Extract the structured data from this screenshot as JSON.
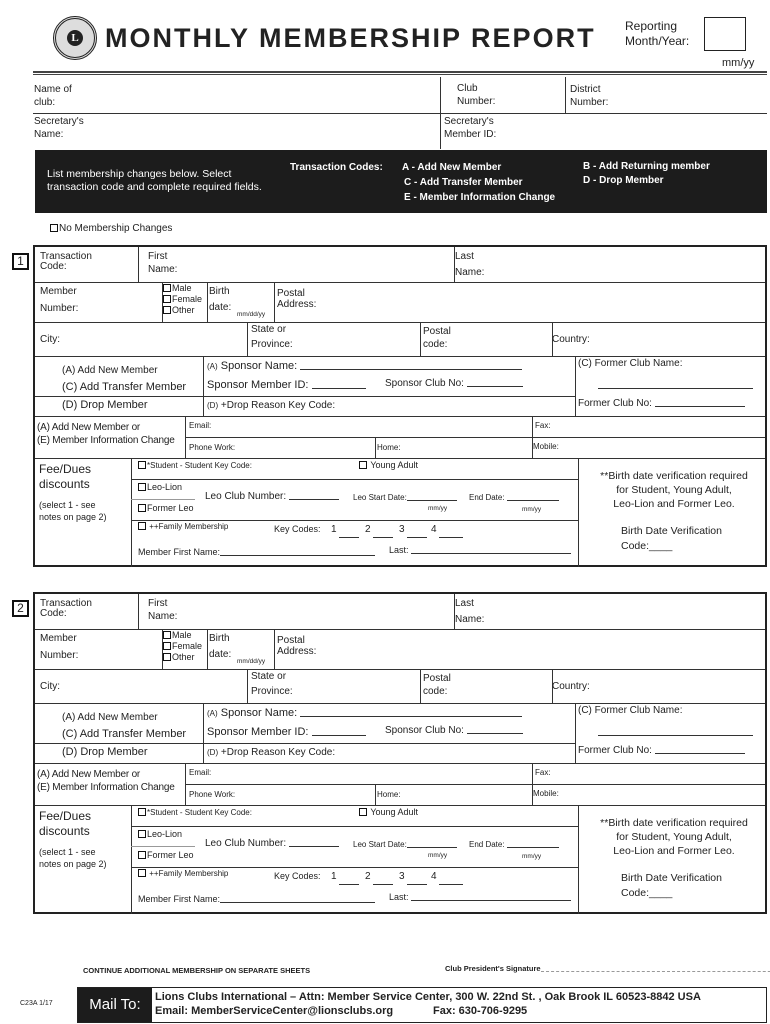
{
  "header": {
    "title": "MONTHLY MEMBERSHIP REPORT",
    "logo_text": "LIONS INTERNATIONAL",
    "reporting_label_1": "Reporting",
    "reporting_label_2": "Month/Year:",
    "reporting_hint": "mm/yy"
  },
  "club": {
    "name_1": "Name of",
    "name_2": "club:",
    "club_number_1": "Club",
    "club_number_2": "Number:",
    "district_1": "District",
    "district_2": "Number:",
    "sec_name_1": "Secretary's",
    "sec_name_2": "Name:",
    "sec_id_1": "Secretary's",
    "sec_id_2": "Member ID:"
  },
  "instructions": {
    "text_1": "List membership changes below. Select",
    "text_2": "transaction code and complete required fields.",
    "codes_label": "Transaction  Codes:",
    "code_a": "A - Add New Member",
    "code_b": "B - Add Returning member",
    "code_c": "C - Add Transfer Member",
    "code_d": "D - Drop Member",
    "code_e": "E - Member Information Change"
  },
  "no_changes": "No Membership Changes",
  "member_form": {
    "transaction_1": "Transaction",
    "transaction_2": "Code:",
    "first_1": "First",
    "first_2": "Name:",
    "last_1": "Last",
    "last_2": "Name:",
    "member_1": "Member",
    "member_2": "Number:",
    "male": "Male",
    "female": "Female",
    "other": "Other",
    "birth_1": "Birth",
    "birth_2": "date:",
    "birth_hint": "mm/dd/yy",
    "postal_1": "Postal",
    "postal_2": "Address:",
    "city": "City:",
    "state_1": "State or",
    "state_2": "Province:",
    "postcode_1": "Postal",
    "postcode_2": "code:",
    "country": "Country:",
    "add_new": "(A) Add New Member",
    "add_transfer": "(C) Add Transfer Member",
    "drop": "(D) Drop Member",
    "sponsor_prefix": "(A)",
    "sponsor_name": "Sponsor Name:",
    "sponsor_id": "Sponsor Member ID:",
    "sponsor_club": "Sponsor Club No:",
    "former_prefix": "(C)",
    "former_name": "Former Club Name:",
    "former_no": "Former Club No:",
    "drop_prefix": "(D)",
    "drop_reason": "+Drop Reason Key Code:",
    "contact_1": "(A) Add New Member or",
    "contact_2": "(E) Member Information Change",
    "email": "Email:",
    "fax": "Fax:",
    "phone": "Phone  Work:",
    "home": "Home:",
    "mobile": "Mobile:",
    "fee_1": "Fee/Dues",
    "fee_2": "discounts",
    "fee_note_1": "(select 1 - see",
    "fee_note_2": "notes on page 2)",
    "student": "*Student - Student Key Code:",
    "young_adult": "Young Adult",
    "leo_lion": "Leo-Lion",
    "former_leo": "Former Leo",
    "leo_club": "Leo Club Number:",
    "leo_start": "Leo Start Date:",
    "end_date": "End Date:",
    "mmyy": "mm/yy",
    "family": "++Family Membership",
    "key_codes": "Key Codes:",
    "k1": "1",
    "k2": "2",
    "k3": "3",
    "k4": "4",
    "family_first": "Member First Name:",
    "family_last": "Last:",
    "verify_1": "**Birth date verification required",
    "verify_2": "for Student, Young Adult,",
    "verify_3": "Leo-Lion and Former Leo.",
    "verify_code_1": "Birth Date Verification",
    "verify_code_2": "Code:____"
  },
  "member_blocks": [
    {
      "number": "1"
    },
    {
      "number": "2"
    }
  ],
  "footer": {
    "continue": "CONTINUE ADDITIONAL MEMBERSHIP ON SEPARATE SHEETS",
    "signature": "Club President's Signature",
    "form_code": "C23A  1/17",
    "mail_to": "Mail To:",
    "address": "Lions Clubs International – Attn: Member Service  Center,  300 W. 22nd St. , Oak Brook IL 60523-8842 USA",
    "email": "Email: MemberServiceCenter@lionsclubs.org",
    "fax": "Fax: 630-706-9295"
  }
}
